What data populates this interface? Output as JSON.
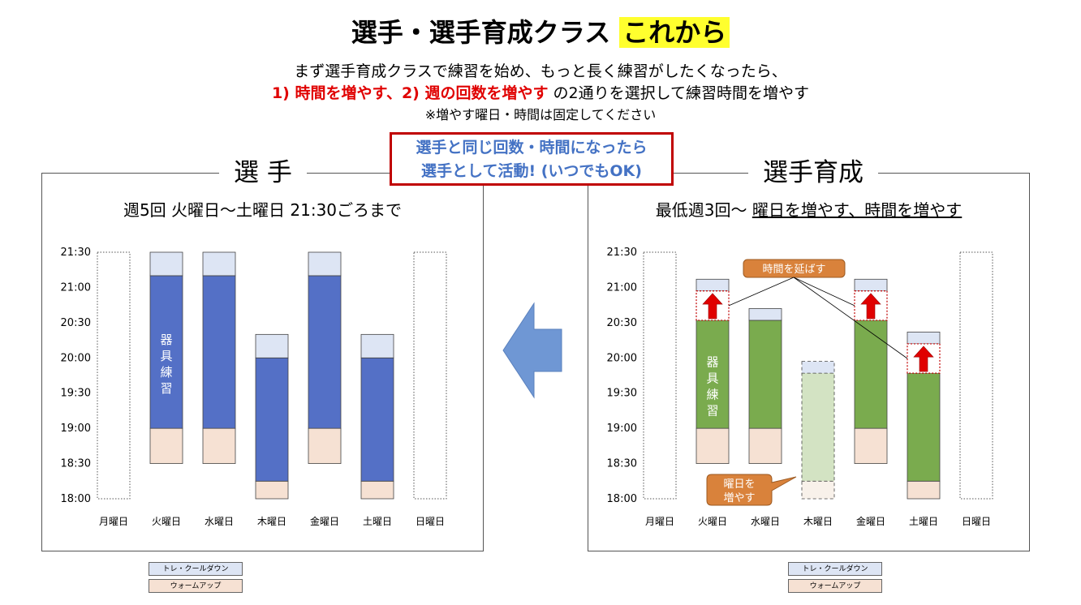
{
  "title": {
    "main": "選手・選手育成クラス",
    "highlight": "これから"
  },
  "intro": {
    "line1": "まず選手育成クラスで練習を始め、もっと長く練習がしたくなったら、",
    "line2_red": "1)  時間を増やす、2) 週の回数を増やす",
    "line2_rest": " の2通りを選択して練習時間を増やす",
    "line3": "※増やす曜日・時間は固定してください"
  },
  "callout": {
    "line1": "選手と同じ回数・時間になったら",
    "line2": "選手として活動! (いつでもOK)"
  },
  "panels": {
    "left": {
      "title": "選 手",
      "subtitle": "週5回 火曜日〜土曜日 21:30ごろまで"
    },
    "right": {
      "title": "選手育成",
      "subtitle_plain": "最低週3回〜 ",
      "subtitle_underlined": "曜日を増やす、時間を増やす"
    }
  },
  "legend": {
    "cooldown": "トレ・クールダウン",
    "warmup": "ウォームアップ"
  },
  "labels": {
    "equipment": "器具練習",
    "extend_time": "時間を延ばす",
    "add_day_1": "曜日を",
    "add_day_2": "増やす"
  },
  "colors": {
    "blue": "#5470c6",
    "green": "#7aab4e",
    "light_green": "#d3e3c3",
    "cooldown": "#dde5f4",
    "warmup": "#f6e1d3",
    "arrow": "#6f97d4",
    "red": "#c00000"
  },
  "chart_data": [
    {
      "type": "bar",
      "name": "選手",
      "categories": [
        "月曜日",
        "火曜日",
        "水曜日",
        "木曜日",
        "金曜日",
        "土曜日",
        "日曜日"
      ],
      "y_ticks": [
        "21:30",
        "21:00",
        "20:30",
        "20:00",
        "19:30",
        "19:00",
        "18:30",
        "18:00"
      ],
      "ylim": [
        "18:00",
        "21:30"
      ],
      "bars": [
        {
          "day": "月曜日",
          "empty": true
        },
        {
          "day": "火曜日",
          "warmup": [
            "18:30",
            "19:00"
          ],
          "main": [
            "19:00",
            "21:10"
          ],
          "cooldown": [
            "21:10",
            "21:30"
          ],
          "label": "器具練習"
        },
        {
          "day": "水曜日",
          "warmup": [
            "18:30",
            "19:00"
          ],
          "main": [
            "19:00",
            "21:10"
          ],
          "cooldown": [
            "21:10",
            "21:30"
          ]
        },
        {
          "day": "木曜日",
          "warmup": [
            "18:00",
            "18:15"
          ],
          "main": [
            "18:15",
            "20:00"
          ],
          "cooldown": [
            "20:00",
            "20:20"
          ]
        },
        {
          "day": "金曜日",
          "warmup": [
            "18:30",
            "19:00"
          ],
          "main": [
            "19:00",
            "21:10"
          ],
          "cooldown": [
            "21:10",
            "21:30"
          ]
        },
        {
          "day": "土曜日",
          "warmup": [
            "18:00",
            "18:15"
          ],
          "main": [
            "18:15",
            "20:00"
          ],
          "cooldown": [
            "20:00",
            "20:20"
          ]
        },
        {
          "day": "日曜日",
          "empty": true
        }
      ]
    },
    {
      "type": "bar",
      "name": "選手育成",
      "categories": [
        "月曜日",
        "火曜日",
        "水曜日",
        "木曜日",
        "金曜日",
        "土曜日",
        "日曜日"
      ],
      "y_ticks": [
        "21:30",
        "21:00",
        "20:30",
        "20:00",
        "19:30",
        "19:00",
        "18:30",
        "18:00"
      ],
      "ylim": [
        "18:00",
        "21:30"
      ],
      "bars": [
        {
          "day": "月曜日",
          "empty": true
        },
        {
          "day": "火曜日",
          "warmup": [
            "18:30",
            "19:00"
          ],
          "main": [
            "19:00",
            "20:32"
          ],
          "extension": [
            "20:32",
            "20:57"
          ],
          "cooldown": [
            "20:57",
            "21:07"
          ],
          "label": "器具練習"
        },
        {
          "day": "水曜日",
          "warmup": [
            "18:30",
            "19:00"
          ],
          "main": [
            "19:00",
            "20:32"
          ],
          "cooldown": [
            "20:32",
            "20:42"
          ]
        },
        {
          "day": "木曜日",
          "optional": true,
          "warmup": [
            "18:00",
            "18:15"
          ],
          "main": [
            "18:15",
            "19:47"
          ],
          "cooldown": [
            "19:47",
            "19:57"
          ]
        },
        {
          "day": "金曜日",
          "warmup": [
            "18:30",
            "19:00"
          ],
          "main": [
            "19:00",
            "20:32"
          ],
          "extension": [
            "20:32",
            "20:57"
          ],
          "cooldown": [
            "20:57",
            "21:07"
          ]
        },
        {
          "day": "土曜日",
          "warmup": [
            "18:00",
            "18:15"
          ],
          "main": [
            "18:15",
            "19:47"
          ],
          "extension": [
            "19:47",
            "20:12"
          ],
          "cooldown": [
            "20:12",
            "20:22"
          ]
        },
        {
          "day": "日曜日",
          "empty": true
        }
      ]
    }
  ]
}
